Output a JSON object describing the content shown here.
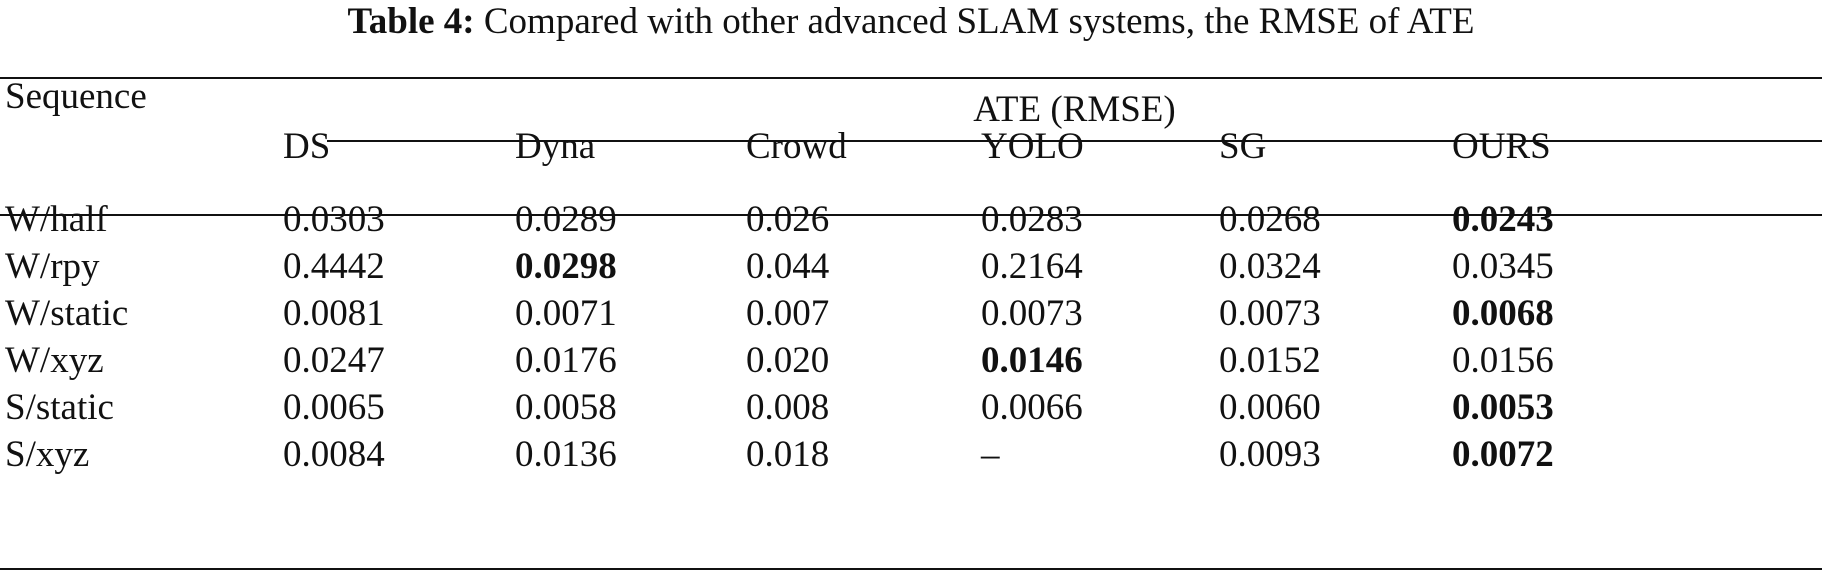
{
  "caption": {
    "label": "Table 4:",
    "text": "Compared with other advanced SLAM systems, the RMSE of ATE"
  },
  "header": {
    "row_label": "Sequence",
    "group": "ATE (RMSE)",
    "columns": [
      "DS",
      "Dyna",
      "Crowd",
      "YOLO",
      "SG",
      "OURS"
    ]
  },
  "rows": [
    {
      "sequence": "W/half",
      "values": [
        "0.0303",
        "0.0289",
        "0.026",
        "0.0283",
        "0.0268",
        "0.0243"
      ],
      "best_index": 5
    },
    {
      "sequence": "W/rpy",
      "values": [
        "0.4442",
        "0.0298",
        "0.044",
        "0.2164",
        "0.0324",
        "0.0345"
      ],
      "best_index": 1
    },
    {
      "sequence": "W/static",
      "values": [
        "0.0081",
        "0.0071",
        "0.007",
        "0.0073",
        "0.0073",
        "0.0068"
      ],
      "best_index": 5
    },
    {
      "sequence": "W/xyz",
      "values": [
        "0.0247",
        "0.0176",
        "0.020",
        "0.0146",
        "0.0152",
        "0.0156"
      ],
      "best_index": 3
    },
    {
      "sequence": "S/static",
      "values": [
        "0.0065",
        "0.0058",
        "0.008",
        "0.0066",
        "0.0060",
        "0.0053"
      ],
      "best_index": 5
    },
    {
      "sequence": "S/xyz",
      "values": [
        "0.0084",
        "0.0136",
        "0.018",
        "–",
        "0.0093",
        "0.0072"
      ],
      "best_index": 5
    }
  ]
}
